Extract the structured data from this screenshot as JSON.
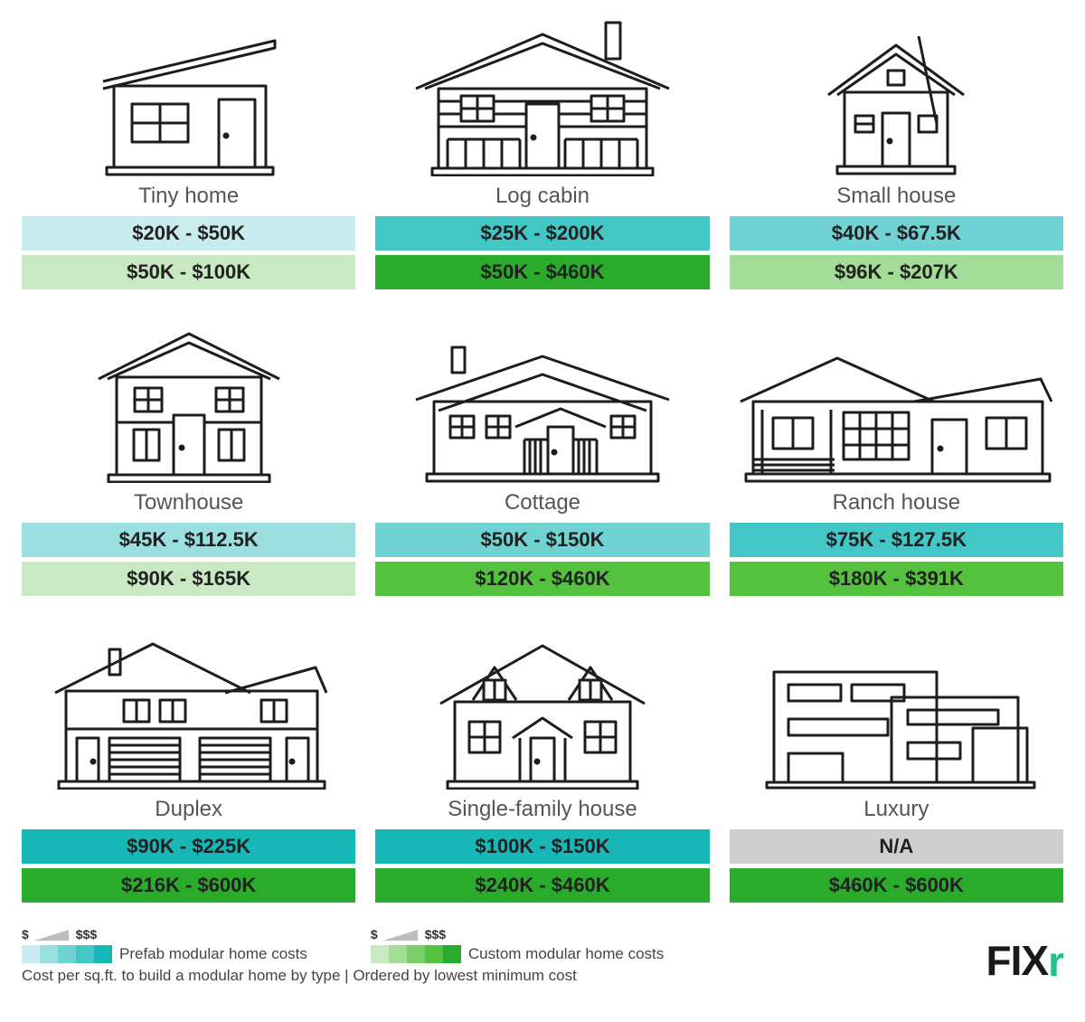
{
  "colors": {
    "teal_scale": [
      "#c8ecee",
      "#9bdfe0",
      "#6fd3d3",
      "#43c6c6",
      "#17b7b7"
    ],
    "green_scale": [
      "#c9e9c3",
      "#a2dc97",
      "#7bcf6b",
      "#54c23f",
      "#2bab2b"
    ],
    "na_bar": "#cfcfcf",
    "icon_stroke": "#1d1d1d"
  },
  "houses": [
    {
      "id": "tiny-home",
      "label": "Tiny home",
      "prefab": "$20K - $50K",
      "custom": "$50K - $100K",
      "prefab_level": 0,
      "custom_level": 0
    },
    {
      "id": "log-cabin",
      "label": "Log cabin",
      "prefab": "$25K - $200K",
      "custom": "$50K - $460K",
      "prefab_level": 3,
      "custom_level": 4
    },
    {
      "id": "small-house",
      "label": "Small house",
      "prefab": "$40K - $67.5K",
      "custom": "$96K - $207K",
      "prefab_level": 2,
      "custom_level": 1
    },
    {
      "id": "townhouse",
      "label": "Townhouse",
      "prefab": "$45K - $112.5K",
      "custom": "$90K - $165K",
      "prefab_level": 1,
      "custom_level": 0
    },
    {
      "id": "cottage",
      "label": "Cottage",
      "prefab": "$50K - $150K",
      "custom": "$120K - $460K",
      "prefab_level": 2,
      "custom_level": 3
    },
    {
      "id": "ranch-house",
      "label": "Ranch house",
      "prefab": "$75K - $127.5K",
      "custom": "$180K - $391K",
      "prefab_level": 3,
      "custom_level": 3
    },
    {
      "id": "duplex",
      "label": "Duplex",
      "prefab": "$90K - $225K",
      "custom": "$216K - $600K",
      "prefab_level": 4,
      "custom_level": 4
    },
    {
      "id": "single-family",
      "label": "Single-family house",
      "prefab": "$100K - $150K",
      "custom": "$240K - $460K",
      "prefab_level": 4,
      "custom_level": 4
    },
    {
      "id": "luxury",
      "label": "Luxury",
      "prefab": "N/A",
      "custom": "$460K - $600K",
      "prefab_level": -1,
      "custom_level": 4
    }
  ],
  "legend": {
    "low": "$",
    "high": "$$$",
    "prefab_label": "Prefab modular home costs",
    "custom_label": "Custom modular home costs"
  },
  "caption": "Cost per sq.ft. to build a modular home by type | Ordered by lowest minimum cost",
  "logo": {
    "text": "FIX",
    "accent": "r"
  }
}
